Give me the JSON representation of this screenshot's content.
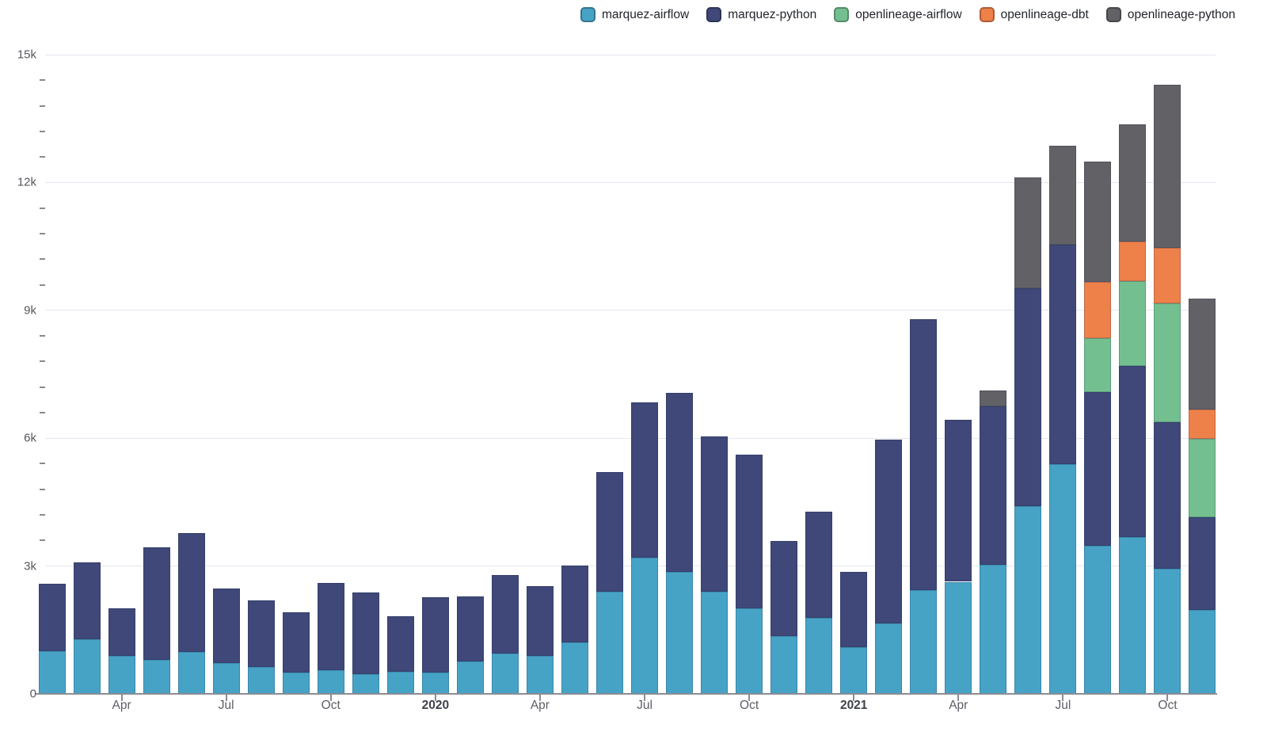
{
  "chart_data": {
    "type": "bar",
    "stacked": true,
    "title": "",
    "xlabel": "",
    "ylabel": "",
    "ylim": [
      0,
      15000
    ],
    "grid": true,
    "legend_position": "top-right",
    "categories": [
      "2019-02",
      "2019-03",
      "2019-04",
      "2019-05",
      "2019-06",
      "2019-07",
      "2019-08",
      "2019-09",
      "2019-10",
      "2019-11",
      "2019-12",
      "2020-01",
      "2020-02",
      "2020-03",
      "2020-04",
      "2020-05",
      "2020-06",
      "2020-07",
      "2020-08",
      "2020-09",
      "2020-10",
      "2020-11",
      "2020-12",
      "2021-01",
      "2021-02",
      "2021-03",
      "2021-04",
      "2021-05",
      "2021-06",
      "2021-07",
      "2021-08",
      "2021-09",
      "2021-10",
      "2021-11"
    ],
    "series": [
      {
        "name": "marquez-airflow",
        "color": "#47a3c6",
        "values": [
          1000,
          1280,
          890,
          800,
          980,
          720,
          630,
          500,
          550,
          470,
          520,
          500,
          770,
          950,
          890,
          1210,
          2400,
          3200,
          2870,
          2400,
          2010,
          1360,
          1790,
          1100,
          1660,
          2440,
          2630,
          3030,
          4400,
          5390,
          3470,
          3680,
          2940,
          1970
        ]
      },
      {
        "name": "marquez-python",
        "color": "#3f4878",
        "values": [
          1580,
          1800,
          1120,
          2630,
          2790,
          1750,
          1560,
          1410,
          2050,
          1910,
          1300,
          1770,
          1520,
          1830,
          1640,
          1810,
          2800,
          3640,
          4190,
          3650,
          3610,
          2230,
          2480,
          1770,
          4300,
          6350,
          3810,
          3720,
          5120,
          5150,
          3610,
          4020,
          3440,
          2180
        ]
      },
      {
        "name": "openlineage-airflow",
        "color": "#74bf8f",
        "values": [
          0,
          0,
          0,
          0,
          0,
          0,
          0,
          0,
          0,
          0,
          0,
          0,
          0,
          0,
          0,
          0,
          0,
          0,
          0,
          0,
          0,
          0,
          0,
          0,
          0,
          0,
          0,
          0,
          0,
          0,
          1270,
          1980,
          2790,
          1840
        ]
      },
      {
        "name": "openlineage-dbt",
        "color": "#ee8049",
        "values": [
          0,
          0,
          0,
          0,
          0,
          0,
          0,
          0,
          0,
          0,
          0,
          0,
          0,
          0,
          0,
          0,
          0,
          0,
          0,
          0,
          0,
          0,
          0,
          0,
          0,
          0,
          0,
          0,
          0,
          0,
          1310,
          930,
          1300,
          680
        ]
      },
      {
        "name": "openlineage-python",
        "color": "#626266",
        "values": [
          0,
          0,
          0,
          0,
          0,
          0,
          0,
          0,
          0,
          0,
          0,
          0,
          0,
          0,
          0,
          0,
          0,
          0,
          0,
          0,
          0,
          0,
          0,
          0,
          0,
          0,
          0,
          370,
          2600,
          2330,
          2830,
          2750,
          3830,
          2610
        ]
      }
    ],
    "yticks": [
      {
        "value": 0,
        "label": "0"
      },
      {
        "value": 3000,
        "label": "3k"
      },
      {
        "value": 6000,
        "label": "6k"
      },
      {
        "value": 9000,
        "label": "9k"
      },
      {
        "value": 12000,
        "label": "12k"
      },
      {
        "value": 15000,
        "label": "15k"
      }
    ],
    "y_minor_tick_step": 600,
    "xticks": [
      {
        "index": 2,
        "label": "Apr",
        "bold": false
      },
      {
        "index": 5,
        "label": "Jul",
        "bold": false
      },
      {
        "index": 8,
        "label": "Oct",
        "bold": false
      },
      {
        "index": 11,
        "label": "2020",
        "bold": true
      },
      {
        "index": 14,
        "label": "Apr",
        "bold": false
      },
      {
        "index": 17,
        "label": "Jul",
        "bold": false
      },
      {
        "index": 20,
        "label": "Oct",
        "bold": false
      },
      {
        "index": 23,
        "label": "2021",
        "bold": true
      },
      {
        "index": 26,
        "label": "Apr",
        "bold": false
      },
      {
        "index": 29,
        "label": "Jul",
        "bold": false
      },
      {
        "index": 32,
        "label": "Oct",
        "bold": false
      }
    ]
  }
}
